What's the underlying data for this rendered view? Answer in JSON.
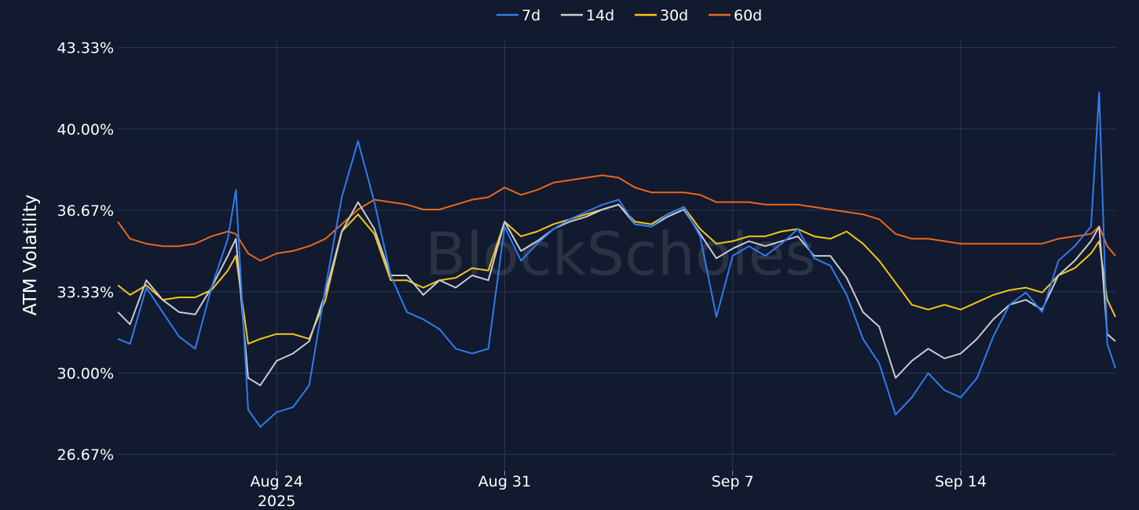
{
  "chart_data": {
    "type": "line",
    "watermark": "BlockScholes",
    "ylabel": "ATM Volatility",
    "xlabel": "",
    "ylim": [
      26.0,
      43.8
    ],
    "y_ticks": [
      "26.67%",
      "30.00%",
      "33.33%",
      "36.67%",
      "40.00%",
      "43.33%"
    ],
    "y_tick_values": [
      26.67,
      30.0,
      33.33,
      36.67,
      40.0,
      43.33
    ],
    "xlim": [
      "2025-08-19T03:00",
      "2025-09-18T18:00"
    ],
    "x_ticks": [
      {
        "date": "2025-08-24",
        "label": "Aug 24",
        "sublabel": "2025"
      },
      {
        "date": "2025-08-31",
        "label": "Aug 31",
        "sublabel": ""
      },
      {
        "date": "2025-09-07",
        "label": "Sep 7",
        "sublabel": ""
      },
      {
        "date": "2025-09-14",
        "label": "Sep 14",
        "sublabel": ""
      }
    ],
    "grid": true,
    "legend_position": "top-center",
    "x": [
      "2025-08-19T03:00",
      "2025-08-19T12:00",
      "2025-08-20T00:00",
      "2025-08-20T12:00",
      "2025-08-21T00:00",
      "2025-08-21T12:00",
      "2025-08-22T00:00",
      "2025-08-22T12:00",
      "2025-08-22T18:00",
      "2025-08-23T03:00",
      "2025-08-23T12:00",
      "2025-08-24T00:00",
      "2025-08-24T12:00",
      "2025-08-25T00:00",
      "2025-08-25T12:00",
      "2025-08-26T00:00",
      "2025-08-26T12:00",
      "2025-08-27T00:00",
      "2025-08-27T12:00",
      "2025-08-28T00:00",
      "2025-08-28T12:00",
      "2025-08-29T00:00",
      "2025-08-29T12:00",
      "2025-08-30T00:00",
      "2025-08-30T12:00",
      "2025-08-31T00:00",
      "2025-08-31T12:00",
      "2025-09-01T00:00",
      "2025-09-01T12:00",
      "2025-09-02T00:00",
      "2025-09-02T12:00",
      "2025-09-03T00:00",
      "2025-09-03T12:00",
      "2025-09-04T00:00",
      "2025-09-04T12:00",
      "2025-09-05T00:00",
      "2025-09-05T12:00",
      "2025-09-06T00:00",
      "2025-09-06T12:00",
      "2025-09-07T00:00",
      "2025-09-07T12:00",
      "2025-09-08T00:00",
      "2025-09-08T12:00",
      "2025-09-09T00:00",
      "2025-09-09T12:00",
      "2025-09-10T00:00",
      "2025-09-10T12:00",
      "2025-09-11T00:00",
      "2025-09-11T12:00",
      "2025-09-12T00:00",
      "2025-09-12T12:00",
      "2025-09-13T00:00",
      "2025-09-13T12:00",
      "2025-09-14T00:00",
      "2025-09-14T12:00",
      "2025-09-15T00:00",
      "2025-09-15T12:00",
      "2025-09-16T00:00",
      "2025-09-16T12:00",
      "2025-09-17T00:00",
      "2025-09-17T12:00",
      "2025-09-18T00:00",
      "2025-09-18T06:00",
      "2025-09-18T12:00",
      "2025-09-18T18:00"
    ],
    "series": [
      {
        "name": "7d",
        "color": "#2f7bf0",
        "values": [
          31.4,
          31.2,
          33.5,
          32.5,
          31.5,
          31.0,
          33.5,
          35.5,
          37.5,
          28.5,
          27.8,
          28.4,
          28.6,
          29.5,
          33.5,
          37.2,
          39.5,
          37.0,
          34.0,
          32.5,
          32.2,
          31.8,
          31.0,
          30.8,
          31.0,
          36.0,
          34.6,
          35.3,
          35.9,
          36.3,
          36.6,
          36.9,
          37.1,
          36.1,
          36.0,
          36.5,
          36.8,
          35.6,
          32.3,
          34.8,
          35.2,
          34.8,
          35.3,
          35.9,
          34.7,
          34.4,
          33.2,
          31.4,
          30.4,
          28.3,
          29.0,
          30.0,
          29.3,
          29.0,
          29.8,
          31.5,
          32.8,
          33.3,
          32.5,
          34.6,
          35.2,
          36.0,
          41.5,
          31.2,
          30.2
        ]
      },
      {
        "name": "14d",
        "color": "#c8ccd4",
        "values": [
          32.5,
          32.0,
          33.8,
          33.0,
          32.5,
          32.4,
          33.5,
          34.8,
          35.5,
          29.8,
          29.5,
          30.5,
          30.8,
          31.3,
          33.3,
          35.8,
          37.0,
          35.9,
          34.0,
          34.0,
          33.2,
          33.8,
          33.5,
          34.0,
          33.8,
          36.2,
          35.0,
          35.4,
          35.9,
          36.2,
          36.4,
          36.7,
          36.9,
          36.1,
          36.0,
          36.4,
          36.7,
          35.7,
          34.7,
          35.1,
          35.4,
          35.2,
          35.4,
          35.6,
          34.8,
          34.8,
          33.9,
          32.5,
          31.9,
          29.8,
          30.5,
          31.0,
          30.6,
          30.8,
          31.4,
          32.2,
          32.8,
          33.0,
          32.6,
          34.0,
          34.6,
          35.4,
          36.0,
          31.6,
          31.3
        ]
      },
      {
        "name": "30d",
        "color": "#f5c518",
        "values": [
          33.6,
          33.2,
          33.6,
          33.0,
          33.1,
          33.1,
          33.4,
          34.2,
          34.8,
          31.2,
          31.4,
          31.6,
          31.6,
          31.4,
          33.0,
          35.8,
          36.5,
          35.7,
          33.8,
          33.8,
          33.5,
          33.8,
          33.9,
          34.3,
          34.2,
          36.2,
          35.6,
          35.8,
          36.1,
          36.3,
          36.5,
          36.7,
          36.9,
          36.2,
          36.1,
          36.5,
          36.8,
          35.9,
          35.3,
          35.4,
          35.6,
          35.6,
          35.8,
          35.9,
          35.6,
          35.5,
          35.8,
          35.3,
          34.6,
          33.7,
          32.8,
          32.6,
          32.8,
          32.6,
          32.9,
          33.2,
          33.4,
          33.5,
          33.3,
          34.0,
          34.3,
          34.9,
          35.4,
          33.0,
          32.3
        ]
      },
      {
        "name": "60d",
        "color": "#e8671e",
        "values": [
          36.2,
          35.5,
          35.3,
          35.2,
          35.2,
          35.3,
          35.6,
          35.8,
          35.7,
          34.9,
          34.6,
          34.9,
          35.0,
          35.2,
          35.5,
          36.1,
          36.7,
          37.1,
          37.0,
          36.9,
          36.7,
          36.7,
          36.9,
          37.1,
          37.2,
          37.6,
          37.3,
          37.5,
          37.8,
          37.9,
          38.0,
          38.1,
          38.0,
          37.6,
          37.4,
          37.4,
          37.4,
          37.3,
          37.0,
          37.0,
          37.0,
          36.9,
          36.9,
          36.9,
          36.8,
          36.7,
          36.6,
          36.5,
          36.3,
          35.7,
          35.5,
          35.5,
          35.4,
          35.3,
          35.3,
          35.3,
          35.3,
          35.3,
          35.3,
          35.5,
          35.6,
          35.7,
          36.0,
          35.2,
          34.8
        ]
      }
    ]
  }
}
